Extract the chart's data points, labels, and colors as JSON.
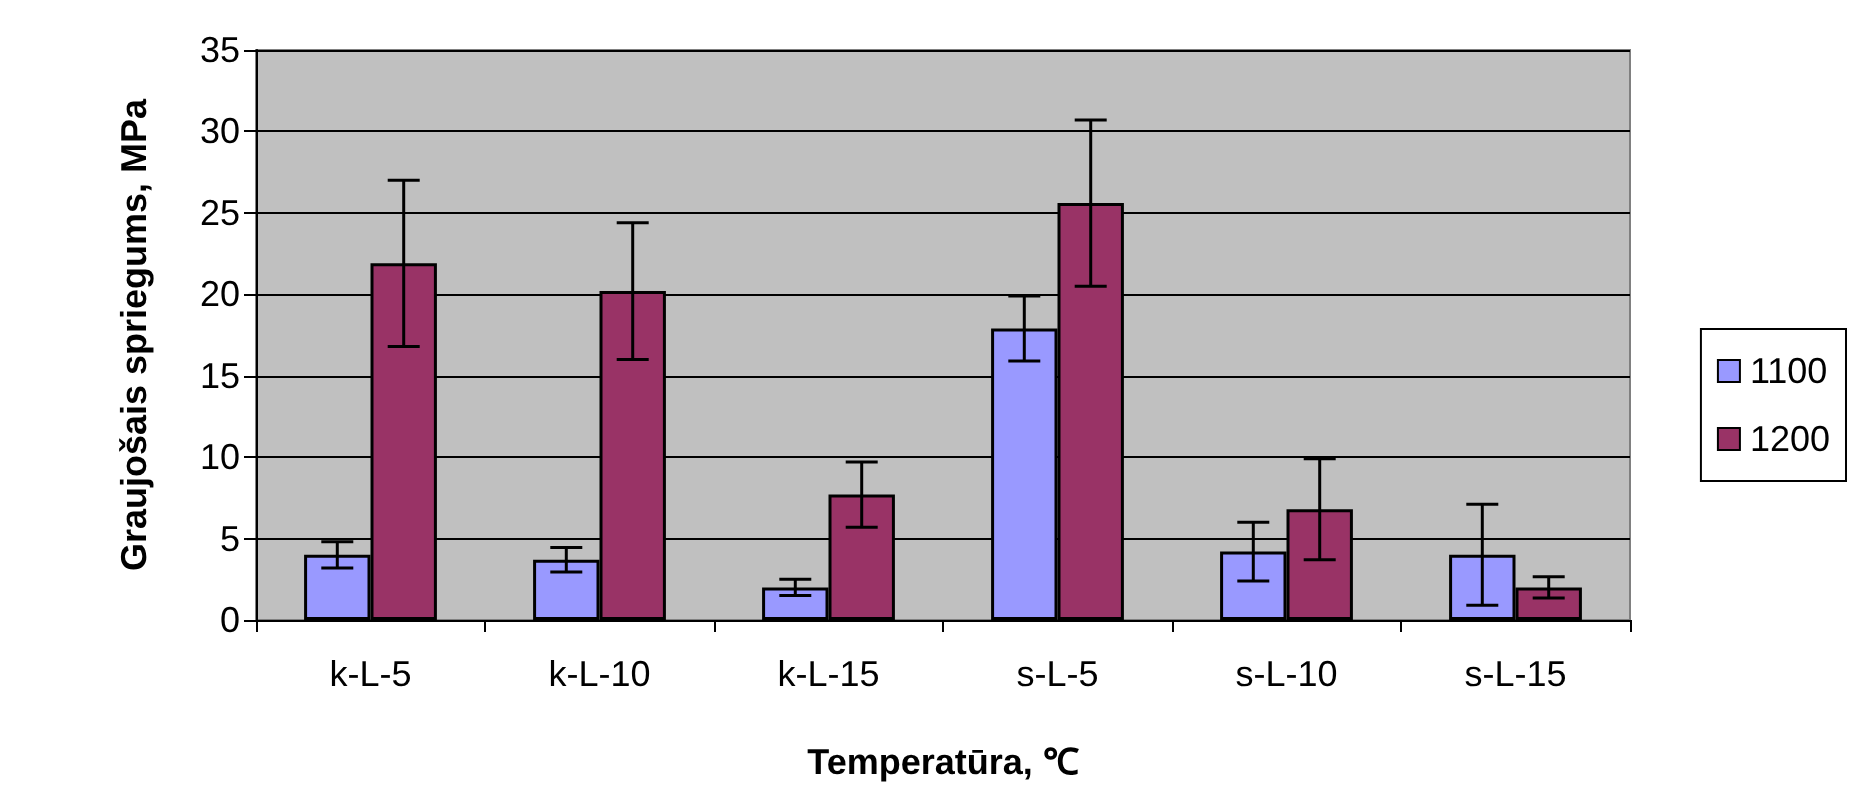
{
  "chart_data": {
    "type": "bar",
    "xlabel": "Temperatūra, ℃",
    "ylabel": "Graujošais spriegums, MPa",
    "categories": [
      "k-L-5",
      "k-L-10",
      "k-L-15",
      "s-L-5",
      "s-L-10",
      "s-L-15"
    ],
    "series": [
      {
        "name": "1100",
        "color": "#9999ff",
        "values": [
          4.0,
          3.7,
          2.0,
          17.9,
          4.2,
          4.0
        ],
        "errors": [
          0.8,
          0.75,
          0.5,
          2.0,
          1.8,
          3.1
        ]
      },
      {
        "name": "1200",
        "color": "#993366",
        "values": [
          21.9,
          20.2,
          7.7,
          25.6,
          6.8,
          2.0
        ],
        "errors": [
          5.1,
          4.2,
          2.0,
          5.1,
          3.1,
          0.65
        ]
      }
    ],
    "ylim": [
      0,
      35
    ],
    "yticks": [
      0,
      5,
      10,
      15,
      20,
      25,
      30,
      35
    ],
    "grid": true,
    "legend": "right"
  }
}
